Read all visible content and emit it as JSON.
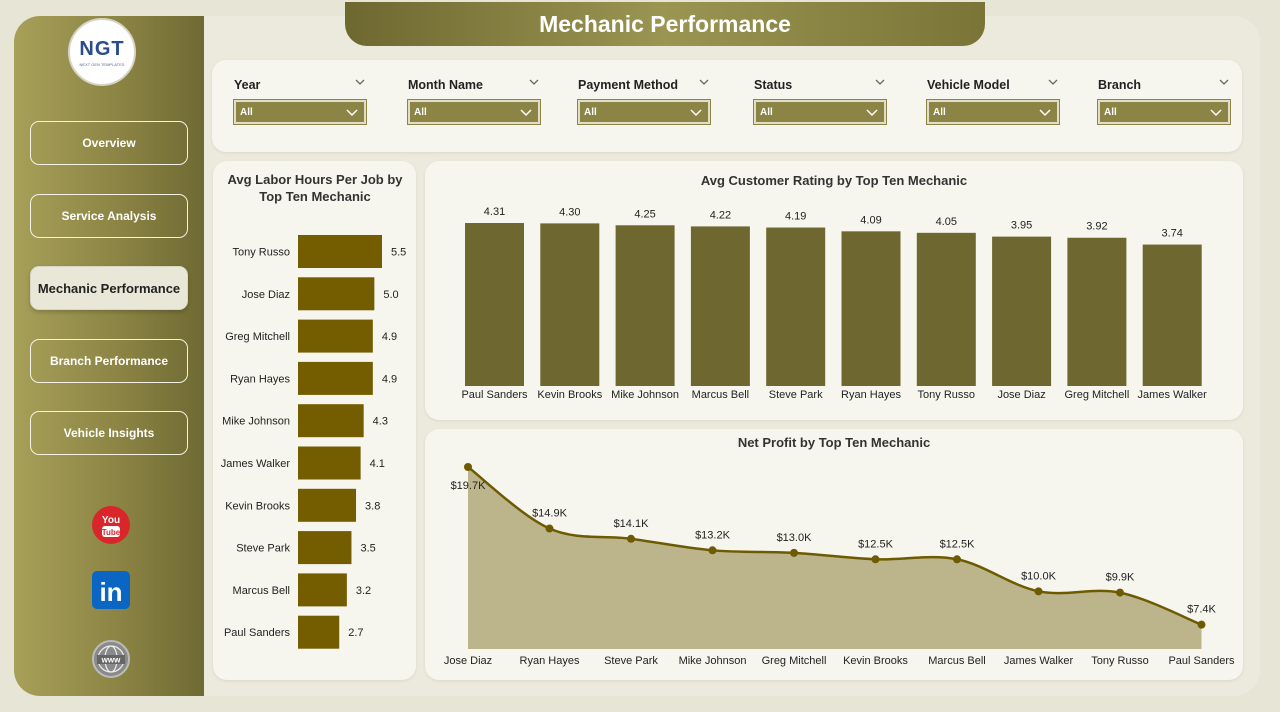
{
  "page": {
    "title": "Mechanic Performance"
  },
  "logo": {
    "text": "NGT",
    "subtext": "NEXT GEN TEMPLATES"
  },
  "nav": [
    {
      "label": "Overview",
      "active": false
    },
    {
      "label": "Service Analysis",
      "active": false
    },
    {
      "label": "Mechanic Performance",
      "active": true
    },
    {
      "label": "Branch Performance",
      "active": false
    },
    {
      "label": "Vehicle Insights",
      "active": false
    }
  ],
  "social": [
    {
      "name": "youtube-icon",
      "text": "You Tube",
      "color": "#d9262a"
    },
    {
      "name": "linkedin-icon",
      "text": "in",
      "color": "#0a66c2"
    },
    {
      "name": "globe-icon",
      "text": "www",
      "color": "#777777"
    }
  ],
  "filters": [
    {
      "label": "Year",
      "value": "All"
    },
    {
      "label": "Month Name",
      "value": "All"
    },
    {
      "label": "Payment Method",
      "value": "All"
    },
    {
      "label": "Status",
      "value": "All"
    },
    {
      "label": "Vehicle Model",
      "value": "All"
    },
    {
      "label": "Branch",
      "value": "All"
    }
  ],
  "colors": {
    "accent": "#6e6830",
    "bar_dark": "#735d00",
    "area_fill": "#bcb58c",
    "line": "#6e5a00"
  },
  "chart_data": [
    {
      "type": "bar",
      "orientation": "horizontal",
      "title": "Avg Labor Hours Per Job by Top Ten Mechanic",
      "categories": [
        "Tony Russo",
        "Jose Diaz",
        "Greg Mitchell",
        "Ryan Hayes",
        "Mike Johnson",
        "James Walker",
        "Kevin Brooks",
        "Steve Park",
        "Marcus Bell",
        "Paul Sanders"
      ],
      "values": [
        5.5,
        5.0,
        4.9,
        4.9,
        4.3,
        4.1,
        3.8,
        3.5,
        3.2,
        2.7
      ],
      "labels": [
        "5.5",
        "5.0",
        "4.9",
        "4.9",
        "4.3",
        "4.1",
        "3.8",
        "3.5",
        "3.2",
        "2.7"
      ],
      "xlim": [
        0,
        5.5
      ]
    },
    {
      "type": "bar",
      "title": "Avg Customer Rating by Top Ten Mechanic",
      "categories": [
        "Paul Sanders",
        "Kevin Brooks",
        "Mike Johnson",
        "Marcus Bell",
        "Steve Park",
        "Ryan Hayes",
        "Tony Russo",
        "Jose Diaz",
        "Greg Mitchell",
        "James Walker"
      ],
      "values": [
        4.31,
        4.3,
        4.25,
        4.22,
        4.19,
        4.09,
        4.05,
        3.95,
        3.92,
        3.74
      ],
      "labels": [
        "4.31",
        "4.30",
        "4.25",
        "4.22",
        "4.19",
        "4.09",
        "4.05",
        "3.95",
        "3.92",
        "3.74"
      ],
      "ylim": [
        0,
        4.31
      ]
    },
    {
      "type": "area",
      "title": "Net Profit by Top Ten Mechanic",
      "categories": [
        "Jose Diaz",
        "Ryan Hayes",
        "Steve Park",
        "Mike Johnson",
        "Greg Mitchell",
        "Kevin Brooks",
        "Marcus Bell",
        "James Walker",
        "Tony Russo",
        "Paul Sanders"
      ],
      "values": [
        19700,
        14900,
        14100,
        13200,
        13000,
        12500,
        12500,
        10000,
        9900,
        7400
      ],
      "labels": [
        "$19.7K",
        "$14.9K",
        "$14.1K",
        "$13.2K",
        "$13.0K",
        "$12.5K",
        "$12.5K",
        "$10.0K",
        "$9.9K",
        "$7.4K"
      ],
      "ylim": [
        5500,
        19700
      ]
    }
  ]
}
